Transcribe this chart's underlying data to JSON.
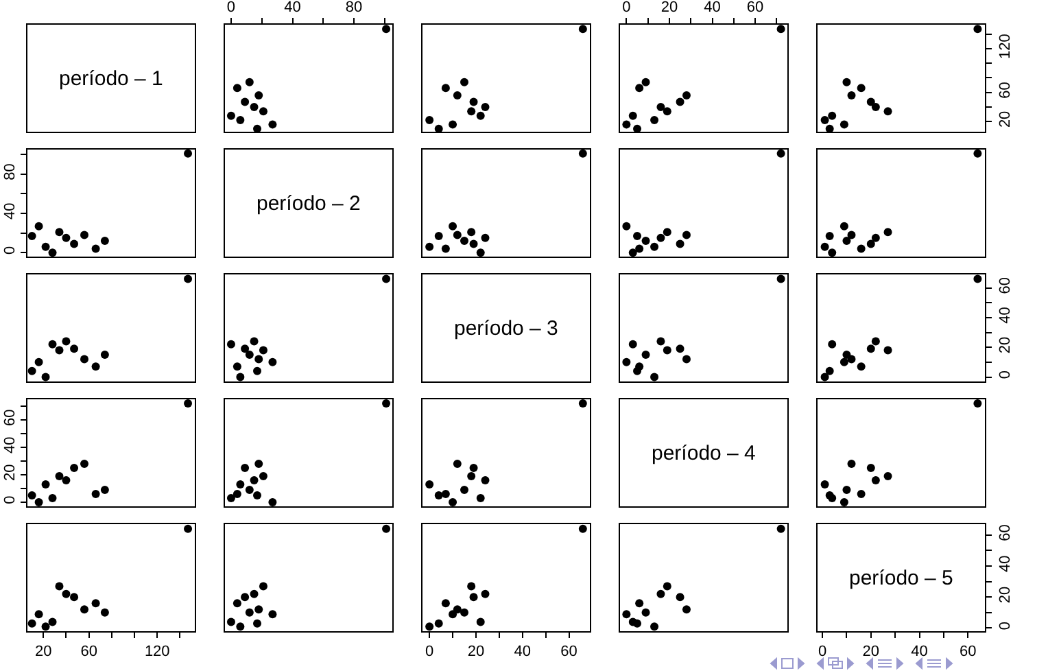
{
  "chart_data": [
    {
      "type": "other",
      "annotations": [
        "período – 1"
      ]
    },
    {
      "type": "scatter",
      "color": "#000000",
      "marker": "circle",
      "x": [
        101,
        12,
        4,
        18,
        9,
        15,
        21,
        0,
        6,
        27,
        17
      ],
      "values": [
        147,
        74,
        66,
        56,
        47,
        40,
        34,
        28,
        22,
        16,
        10
      ],
      "xlim": [
        -4,
        105
      ],
      "ylim": [
        6,
        153
      ],
      "xticks": [
        0,
        {
          "value": 20,
          "label": null
        },
        40,
        {
          "value": 60,
          "label": null
        },
        80,
        {
          "value": 100,
          "label": null
        }
      ],
      "tick_labels": "x"
    },
    {
      "type": "scatter",
      "color": "#000000",
      "marker": "circle",
      "x": [
        66,
        15,
        7,
        12,
        19,
        24,
        18,
        22,
        0,
        10,
        4
      ],
      "values": [
        147,
        74,
        66,
        56,
        47,
        40,
        34,
        28,
        22,
        16,
        10
      ],
      "xlim": [
        -3,
        69
      ],
      "ylim": [
        6,
        153
      ],
      "tick_labels": false
    },
    {
      "type": "scatter",
      "color": "#000000",
      "marker": "circle",
      "x": [
        72,
        9,
        6,
        28,
        25,
        16,
        19,
        3,
        13,
        0,
        5
      ],
      "values": [
        147,
        74,
        66,
        56,
        47,
        40,
        34,
        28,
        22,
        16,
        10
      ],
      "xlim": [
        -3,
        75
      ],
      "ylim": [
        6,
        153
      ],
      "xticks": [
        0,
        {
          "value": 10,
          "label": null
        },
        20,
        {
          "value": 30,
          "label": null
        },
        40,
        {
          "value": 50,
          "label": null
        },
        60,
        {
          "value": 70,
          "label": null
        }
      ],
      "tick_labels": "x"
    },
    {
      "type": "scatter",
      "color": "#000000",
      "marker": "circle",
      "x": [
        64,
        10,
        16,
        12,
        20,
        22,
        27,
        4,
        1,
        9,
        3
      ],
      "values": [
        147,
        74,
        66,
        56,
        47,
        40,
        34,
        28,
        22,
        16,
        10
      ],
      "xlim": [
        -2,
        67
      ],
      "ylim": [
        6,
        153
      ],
      "yticks": [
        20,
        {
          "value": 40,
          "label": null
        },
        60,
        {
          "value": 80,
          "label": null
        },
        {
          "value": 100,
          "label": null
        },
        120,
        {
          "value": 140,
          "label": null
        }
      ],
      "tick_labels": "y"
    },
    {
      "type": "scatter",
      "color": "#000000",
      "marker": "circle",
      "x": [
        147,
        74,
        66,
        56,
        47,
        40,
        34,
        28,
        22,
        16,
        10
      ],
      "values": [
        101,
        12,
        4,
        18,
        9,
        15,
        21,
        0,
        6,
        27,
        17
      ],
      "xlim": [
        6,
        153
      ],
      "ylim": [
        -4,
        105
      ],
      "yticks": [
        0,
        {
          "value": 20,
          "label": null
        },
        40,
        {
          "value": 60,
          "label": null
        },
        80,
        {
          "value": 100,
          "label": null
        }
      ],
      "tick_labels": "y"
    },
    {
      "type": "other",
      "annotations": [
        "período – 2"
      ]
    },
    {
      "type": "scatter",
      "color": "#000000",
      "marker": "circle",
      "x": [
        66,
        15,
        7,
        12,
        19,
        24,
        18,
        22,
        0,
        10,
        4
      ],
      "values": [
        101,
        12,
        4,
        18,
        9,
        15,
        21,
        0,
        6,
        27,
        17
      ],
      "xlim": [
        -3,
        69
      ],
      "ylim": [
        -4,
        105
      ],
      "tick_labels": false
    },
    {
      "type": "scatter",
      "color": "#000000",
      "marker": "circle",
      "x": [
        72,
        9,
        6,
        28,
        25,
        16,
        19,
        3,
        13,
        0,
        5
      ],
      "values": [
        101,
        12,
        4,
        18,
        9,
        15,
        21,
        0,
        6,
        27,
        17
      ],
      "xlim": [
        -3,
        75
      ],
      "ylim": [
        -4,
        105
      ],
      "tick_labels": false
    },
    {
      "type": "scatter",
      "color": "#000000",
      "marker": "circle",
      "x": [
        64,
        10,
        16,
        12,
        20,
        22,
        27,
        4,
        1,
        9,
        3
      ],
      "values": [
        101,
        12,
        4,
        18,
        9,
        15,
        21,
        0,
        6,
        27,
        17
      ],
      "xlim": [
        -2,
        67
      ],
      "ylim": [
        -4,
        105
      ],
      "tick_labels": false
    },
    {
      "type": "scatter",
      "color": "#000000",
      "marker": "circle",
      "x": [
        147,
        74,
        66,
        56,
        47,
        40,
        34,
        28,
        22,
        16,
        10
      ],
      "values": [
        66,
        15,
        7,
        12,
        19,
        24,
        18,
        22,
        0,
        10,
        4
      ],
      "xlim": [
        6,
        153
      ],
      "ylim": [
        -3,
        69
      ],
      "tick_labels": false
    },
    {
      "type": "scatter",
      "color": "#000000",
      "marker": "circle",
      "x": [
        101,
        12,
        4,
        18,
        9,
        15,
        21,
        0,
        6,
        27,
        17
      ],
      "values": [
        66,
        15,
        7,
        12,
        19,
        24,
        18,
        22,
        0,
        10,
        4
      ],
      "xlim": [
        -4,
        105
      ],
      "ylim": [
        -3,
        69
      ],
      "tick_labels": false
    },
    {
      "type": "other",
      "annotations": [
        "período – 3"
      ]
    },
    {
      "type": "scatter",
      "color": "#000000",
      "marker": "circle",
      "x": [
        72,
        9,
        6,
        28,
        25,
        16,
        19,
        3,
        13,
        0,
        5
      ],
      "values": [
        66,
        15,
        7,
        12,
        19,
        24,
        18,
        22,
        0,
        10,
        4
      ],
      "xlim": [
        -3,
        75
      ],
      "ylim": [
        -3,
        69
      ],
      "tick_labels": false
    },
    {
      "type": "scatter",
      "color": "#000000",
      "marker": "circle",
      "x": [
        64,
        10,
        16,
        12,
        20,
        22,
        27,
        4,
        1,
        9,
        3
      ],
      "values": [
        66,
        15,
        7,
        12,
        19,
        24,
        18,
        22,
        0,
        10,
        4
      ],
      "xlim": [
        -2,
        67
      ],
      "ylim": [
        -3,
        69
      ],
      "yticks": [
        0,
        {
          "value": 10,
          "label": null
        },
        20,
        {
          "value": 30,
          "label": null
        },
        40,
        {
          "value": 50,
          "label": null
        },
        60
      ],
      "tick_labels": "y"
    },
    {
      "type": "scatter",
      "color": "#000000",
      "marker": "circle",
      "x": [
        147,
        74,
        66,
        56,
        47,
        40,
        34,
        28,
        22,
        16,
        10
      ],
      "values": [
        72,
        9,
        6,
        28,
        25,
        16,
        19,
        3,
        13,
        0,
        5
      ],
      "xlim": [
        6,
        153
      ],
      "ylim": [
        -3,
        75
      ],
      "yticks": [
        0,
        {
          "value": 10,
          "label": null
        },
        20,
        {
          "value": 30,
          "label": null
        },
        40,
        {
          "value": 50,
          "label": null
        },
        60,
        {
          "value": 70,
          "label": null
        }
      ],
      "tick_labels": "y"
    },
    {
      "type": "scatter",
      "color": "#000000",
      "marker": "circle",
      "x": [
        101,
        12,
        4,
        18,
        9,
        15,
        21,
        0,
        6,
        27,
        17
      ],
      "values": [
        72,
        9,
        6,
        28,
        25,
        16,
        19,
        3,
        13,
        0,
        5
      ],
      "xlim": [
        -4,
        105
      ],
      "ylim": [
        -3,
        75
      ],
      "tick_labels": false
    },
    {
      "type": "scatter",
      "color": "#000000",
      "marker": "circle",
      "x": [
        66,
        15,
        7,
        12,
        19,
        24,
        18,
        22,
        0,
        10,
        4
      ],
      "values": [
        72,
        9,
        6,
        28,
        25,
        16,
        19,
        3,
        13,
        0,
        5
      ],
      "xlim": [
        -3,
        69
      ],
      "ylim": [
        -3,
        75
      ],
      "tick_labels": false
    },
    {
      "type": "other",
      "annotations": [
        "período – 4"
      ]
    },
    {
      "type": "scatter",
      "color": "#000000",
      "marker": "circle",
      "x": [
        64,
        10,
        16,
        12,
        20,
        22,
        27,
        4,
        1,
        9,
        3
      ],
      "values": [
        72,
        9,
        6,
        28,
        25,
        16,
        19,
        3,
        13,
        0,
        5
      ],
      "xlim": [
        -2,
        67
      ],
      "ylim": [
        -3,
        75
      ],
      "tick_labels": false
    },
    {
      "type": "scatter",
      "color": "#000000",
      "marker": "circle",
      "x": [
        147,
        74,
        66,
        56,
        47,
        40,
        34,
        28,
        22,
        16,
        10
      ],
      "values": [
        64,
        10,
        16,
        12,
        20,
        22,
        27,
        4,
        1,
        9,
        3
      ],
      "xlim": [
        6,
        153
      ],
      "ylim": [
        -2,
        67
      ],
      "xticks": [
        20,
        {
          "value": 40,
          "label": null
        },
        60,
        {
          "value": 80,
          "label": null
        },
        {
          "value": 100,
          "label": null
        },
        120,
        {
          "value": 140,
          "label": null
        }
      ],
      "tick_labels": "x"
    },
    {
      "type": "scatter",
      "color": "#000000",
      "marker": "circle",
      "x": [
        101,
        12,
        4,
        18,
        9,
        15,
        21,
        0,
        6,
        27,
        17
      ],
      "values": [
        64,
        10,
        16,
        12,
        20,
        22,
        27,
        4,
        1,
        9,
        3
      ],
      "xlim": [
        -4,
        105
      ],
      "ylim": [
        -2,
        67
      ],
      "tick_labels": false
    },
    {
      "type": "scatter",
      "color": "#000000",
      "marker": "circle",
      "x": [
        66,
        15,
        7,
        12,
        19,
        24,
        18,
        22,
        0,
        10,
        4
      ],
      "values": [
        64,
        10,
        16,
        12,
        20,
        22,
        27,
        4,
        1,
        9,
        3
      ],
      "xlim": [
        -3,
        69
      ],
      "ylim": [
        -2,
        67
      ],
      "xticks": [
        0,
        {
          "value": 10,
          "label": null
        },
        20,
        {
          "value": 30,
          "label": null
        },
        40,
        {
          "value": 50,
          "label": null
        },
        60
      ],
      "tick_labels": "x"
    },
    {
      "type": "scatter",
      "color": "#000000",
      "marker": "circle",
      "x": [
        72,
        9,
        6,
        28,
        25,
        16,
        19,
        3,
        13,
        0,
        5
      ],
      "values": [
        64,
        10,
        16,
        12,
        20,
        22,
        27,
        4,
        1,
        9,
        3
      ],
      "xlim": [
        -3,
        75
      ],
      "ylim": [
        -2,
        67
      ],
      "tick_labels": false
    },
    {
      "type": "scatter",
      "color": "#000000",
      "marker": "circle",
      "annotations": [
        "período – 5"
      ],
      "xlim": [
        -2,
        67
      ],
      "ylim": [
        -2,
        67
      ],
      "xticks": [
        0,
        {
          "value": 10,
          "label": null
        },
        20,
        {
          "value": 30,
          "label": null
        },
        40,
        {
          "value": 50,
          "label": null
        },
        60
      ],
      "yticks": [
        0,
        {
          "value": 10,
          "label": null
        },
        20,
        {
          "value": 30,
          "label": null
        },
        40,
        {
          "value": 50,
          "label": null
        },
        60
      ]
    }
  ]
}
